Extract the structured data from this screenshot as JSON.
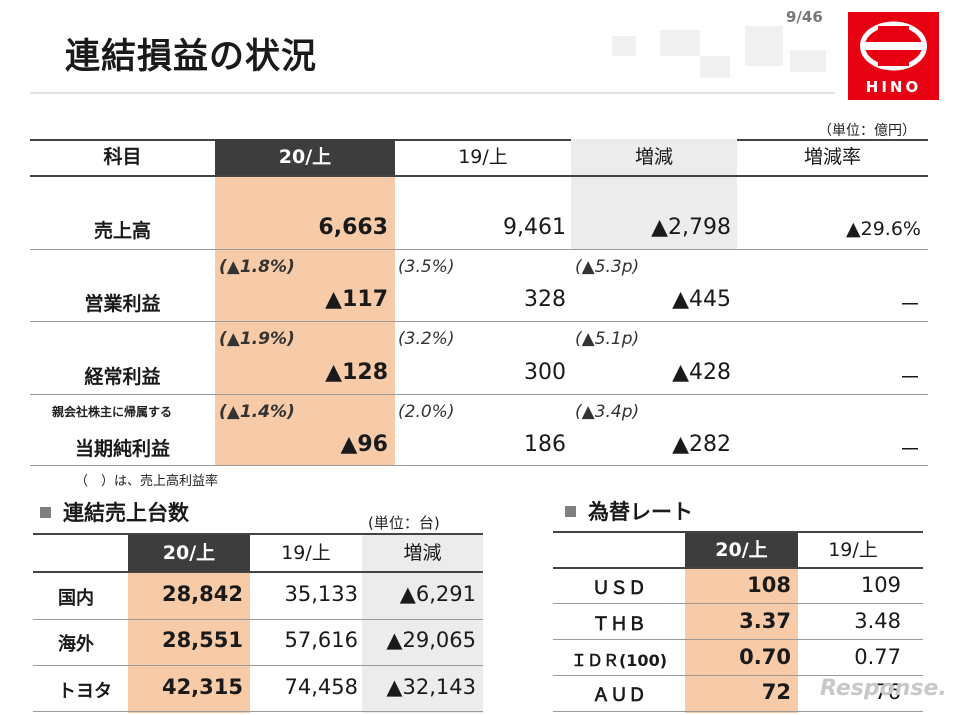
{
  "header": {
    "title": "連結損益の状況",
    "page": "9/46",
    "logo_text": "HINO"
  },
  "pl_table": {
    "unit": "（単位：億円）",
    "headers": [
      "科目",
      "20/上",
      "19/上",
      "増減",
      "増減率"
    ],
    "rows": [
      {
        "label": "売上高",
        "prefix": "",
        "cur": "6,663",
        "prev": "9,461",
        "diff": "▲2,798",
        "rate": "▲29.6%",
        "cur_ratio": "",
        "prev_ratio": "",
        "diff_ratio": ""
      },
      {
        "label": "営業利益",
        "prefix": "",
        "cur": "▲117",
        "prev": "328",
        "diff": "▲445",
        "rate": "－",
        "cur_ratio": "(▲1.8%)",
        "prev_ratio": "(3.5%)",
        "diff_ratio": "(▲5.3p)"
      },
      {
        "label": "経常利益",
        "prefix": "",
        "cur": "▲128",
        "prev": "300",
        "diff": "▲428",
        "rate": "－",
        "cur_ratio": "(▲1.9%)",
        "prev_ratio": "(3.2%)",
        "diff_ratio": "(▲5.1p)"
      },
      {
        "label": "当期純利益",
        "prefix": "親会社株主に帰属する",
        "cur": "▲96",
        "prev": "186",
        "diff": "▲282",
        "rate": "－",
        "cur_ratio": "(▲1.4%)",
        "prev_ratio": "(2.0%)",
        "diff_ratio": "(▲3.4p)"
      }
    ],
    "note": "（　）は、売上高利益率"
  },
  "units_table": {
    "title": "連結売上台数",
    "unit": "(単位：台)",
    "headers": [
      "20/上",
      "19/上",
      "増減"
    ],
    "rows": [
      {
        "label": "国内",
        "cur": "28,842",
        "prev": "35,133",
        "diff": "▲6,291"
      },
      {
        "label": "海外",
        "cur": "28,551",
        "prev": "57,616",
        "diff": "▲29,065"
      },
      {
        "label": "トヨタ",
        "cur": "42,315",
        "prev": "74,458",
        "diff": "▲32,143"
      }
    ]
  },
  "fx_table": {
    "title": "為替レート",
    "headers": [
      "20/上",
      "19/上"
    ],
    "rows": [
      {
        "label": "ＵＳＤ",
        "cur": "108",
        "prev": "109"
      },
      {
        "label": "ＴＨＢ",
        "cur": "3.37",
        "prev": "3.48"
      },
      {
        "label": "ＩＤＲ(100)",
        "cur": "0.70",
        "prev": "0.77"
      },
      {
        "label": "ＡＵＤ",
        "cur": "72",
        "prev": "76"
      }
    ]
  },
  "watermark": "Response."
}
